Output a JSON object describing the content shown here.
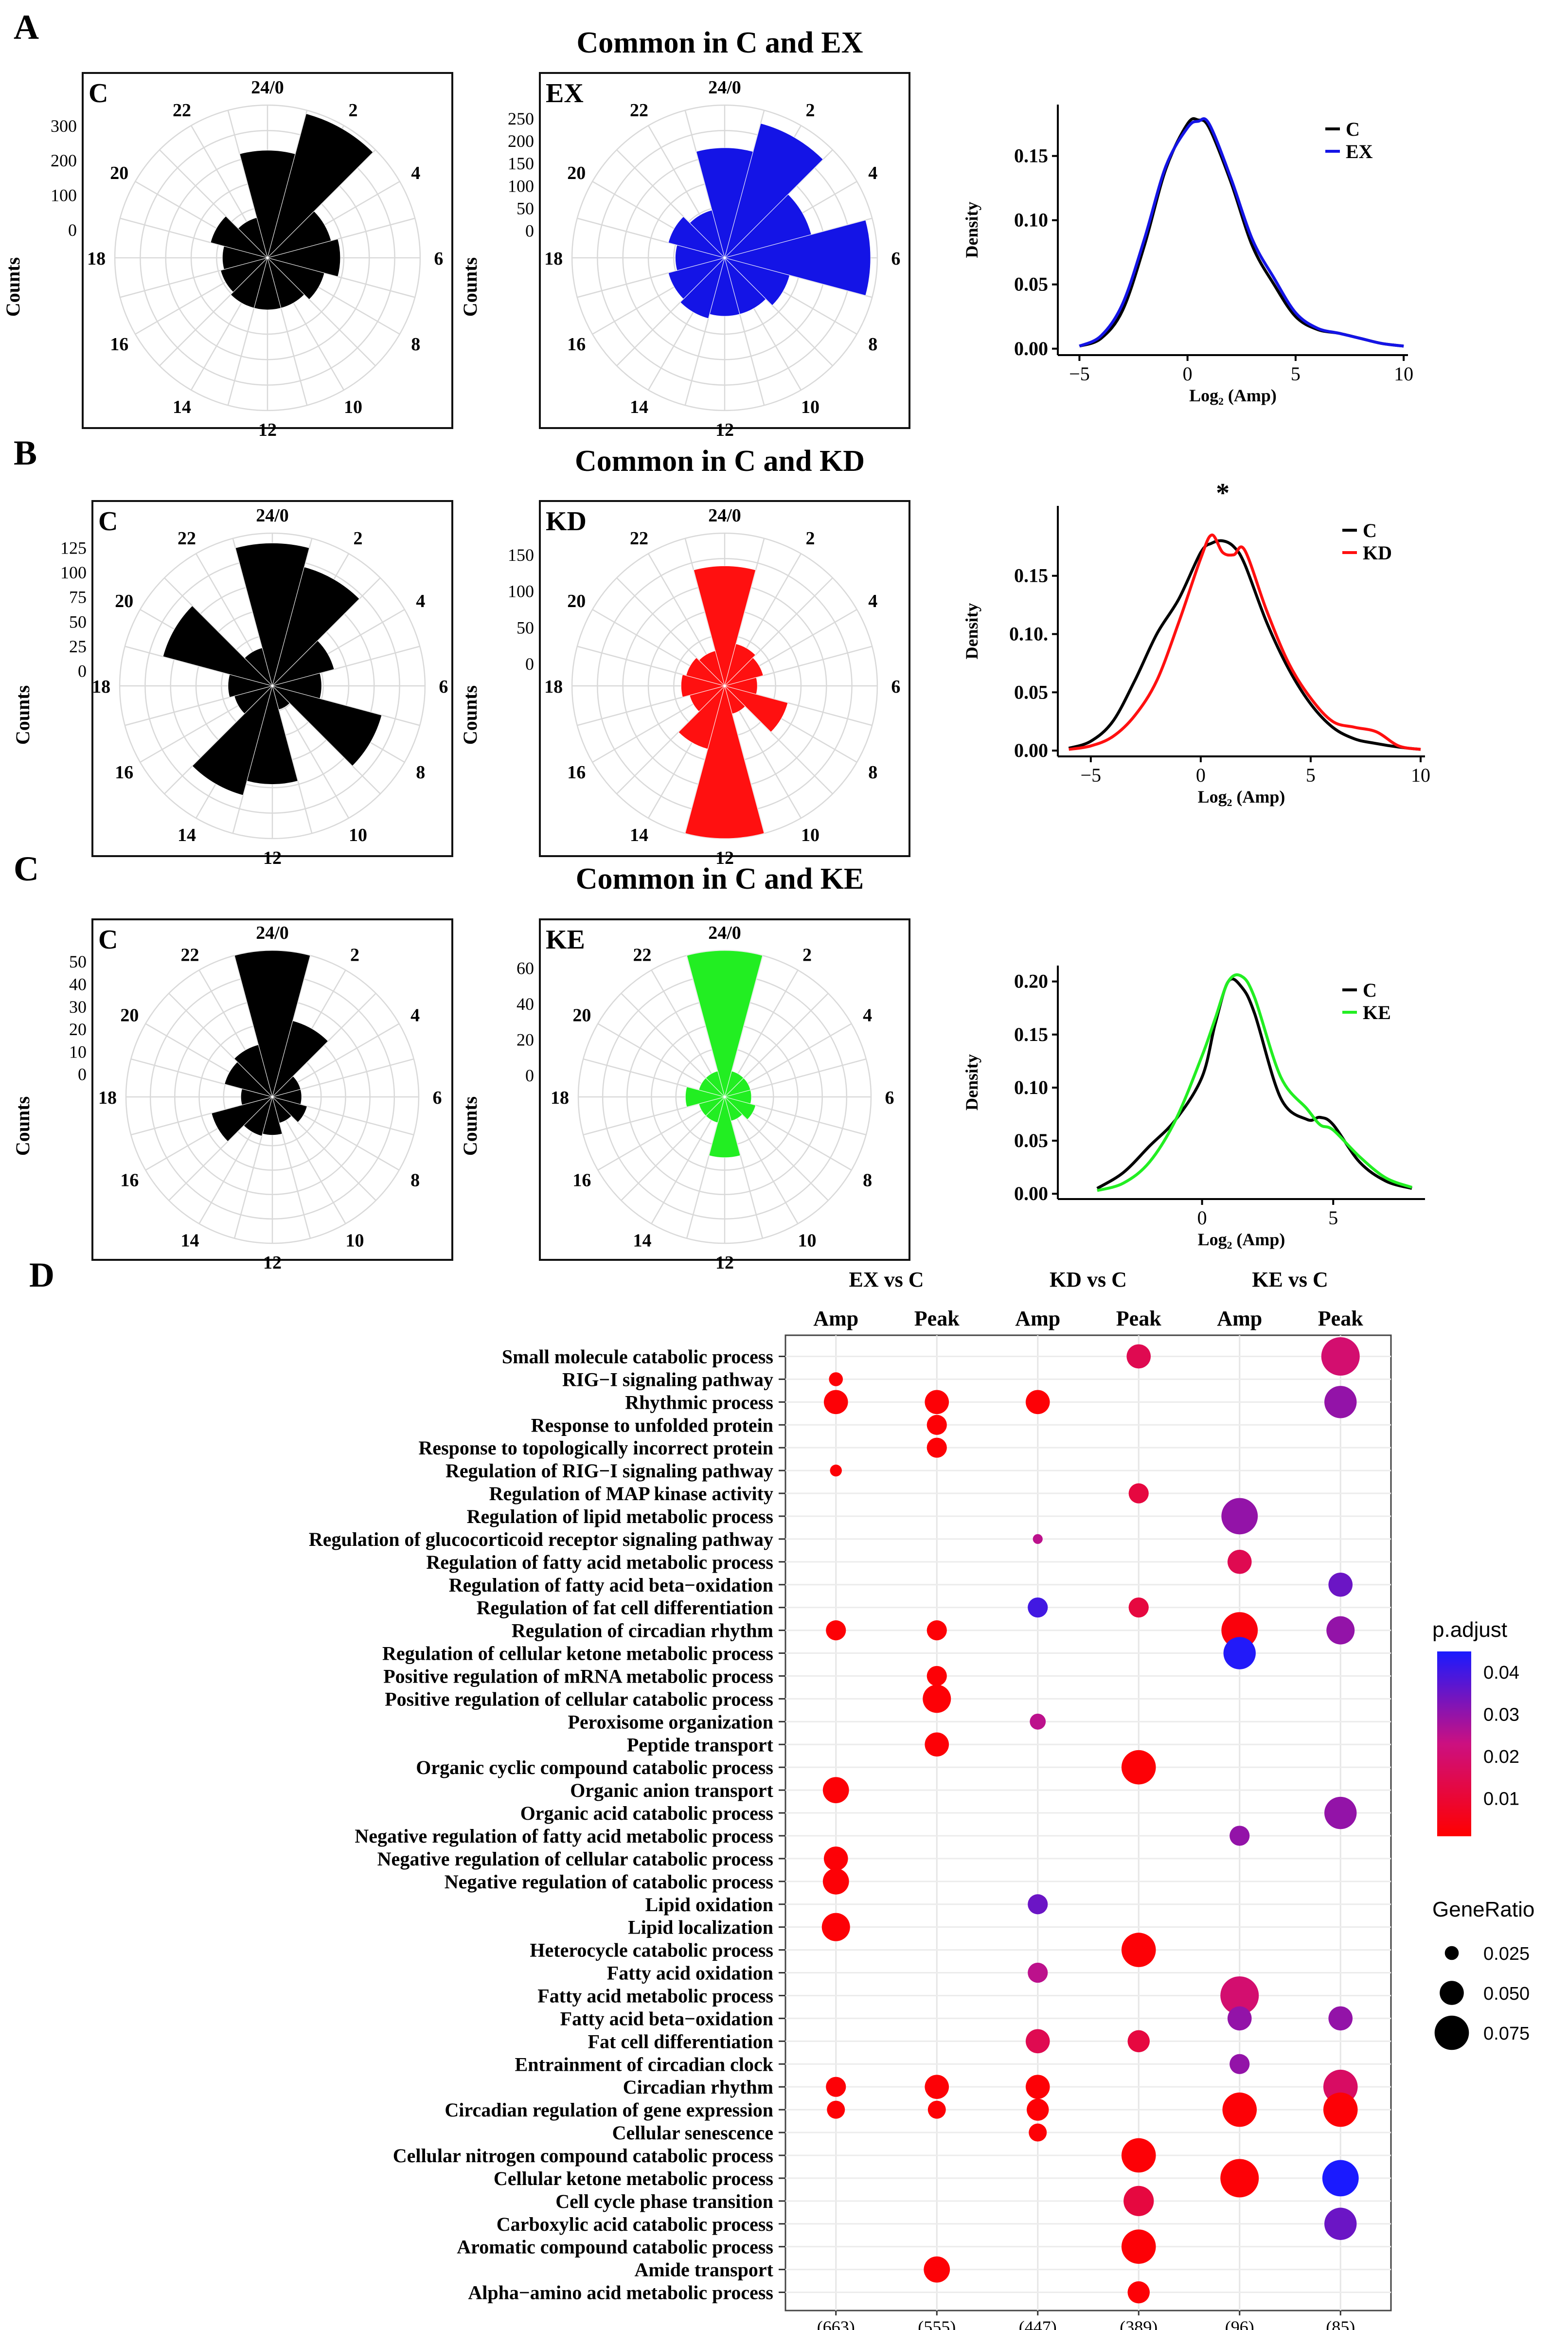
{
  "figure": {
    "panel_letters": [
      "A",
      "B",
      "C",
      "D"
    ],
    "row_titles": [
      "Common in C and EX",
      "Common in C and KD",
      "Common in C and KE"
    ]
  },
  "colors": {
    "c": "#000000",
    "ex": "#1414e6",
    "kd": "#ff1010",
    "ke": "#22ee22",
    "pad_low": "#ff0000",
    "pad_mid": "#cc1080",
    "pad_high": "#1a1aff"
  },
  "chart_data": [
    {
      "id": "rose-A-C",
      "type": "rose",
      "label": "C",
      "ylabel": "Counts",
      "axis_ticks": [
        "300",
        "200",
        "100",
        "0"
      ],
      "rmax": 360,
      "rmin": -80,
      "color_key": "c",
      "hour_labels": [
        "24/0",
        "2",
        "4",
        "6",
        "8",
        "10",
        "12",
        "14",
        "16",
        "18",
        "20",
        "22"
      ],
      "values": [
        230,
        350,
        110,
        130,
        90,
        70,
        70,
        70,
        60,
        50,
        90,
        40
      ]
    },
    {
      "id": "rose-A-EX",
      "type": "rose",
      "label": "EX",
      "ylabel": "Counts",
      "axis_ticks": [
        "250",
        "200",
        "150",
        "100",
        "50",
        "0"
      ],
      "rmax": 280,
      "rmin": -60,
      "color_key": "ex",
      "hour_labels": [
        "24/0",
        "2",
        "4",
        "6",
        "8",
        "10",
        "12",
        "14",
        "16",
        "18",
        "20",
        "22"
      ],
      "values": [
        185,
        250,
        140,
        265,
        90,
        70,
        70,
        80,
        70,
        50,
        70,
        50
      ]
    },
    {
      "id": "rose-B-C",
      "type": "rose",
      "label": "C",
      "ylabel": "Counts",
      "axis_ticks": [
        "125",
        "100",
        "75",
        "50",
        "25",
        "0"
      ],
      "rmax": 140,
      "rmin": -15,
      "color_key": "c",
      "hour_labels": [
        "24/0",
        "2",
        "4",
        "6",
        "8",
        "10",
        "12",
        "14",
        "16",
        "18",
        "20",
        "22"
      ],
      "values": [
        130,
        110,
        50,
        35,
        100,
        10,
        85,
        100,
        25,
        30,
        100,
        25
      ]
    },
    {
      "id": "rose-B-KD",
      "type": "rose",
      "label": "KD",
      "ylabel": "Counts",
      "axis_ticks": [
        "150",
        "100",
        "50",
        "0"
      ],
      "rmax": 180,
      "rmin": -30,
      "color_key": "kd",
      "hour_labels": [
        "24/0",
        "2",
        "4",
        "6",
        "8",
        "10",
        "12",
        "14",
        "16",
        "18",
        "20",
        "22"
      ],
      "values": [
        135,
        30,
        25,
        15,
        60,
        10,
        180,
        60,
        20,
        30,
        25,
        20
      ]
    },
    {
      "id": "rose-C-C",
      "type": "rose",
      "label": "C",
      "ylabel": "Counts",
      "axis_ticks": [
        "50",
        "40",
        "30",
        "20",
        "10",
        "0"
      ],
      "rmax": 55,
      "rmin": -10,
      "color_key": "c",
      "hour_labels": [
        "24/0",
        "2",
        "4",
        "6",
        "8",
        "10",
        "12",
        "14",
        "16",
        "18",
        "20",
        "22"
      ],
      "values": [
        55,
        25,
        3,
        3,
        6,
        2,
        7,
        8,
        18,
        4,
        12,
        14
      ]
    },
    {
      "id": "rose-C-KE",
      "type": "rose",
      "label": "KE",
      "ylabel": "Counts",
      "axis_ticks": [
        "60",
        "40",
        "20",
        "0"
      ],
      "rmax": 70,
      "rmin": -12,
      "color_key": "ke",
      "hour_labels": [
        "24/0",
        "2",
        "4",
        "6",
        "8",
        "10",
        "12",
        "14",
        "16",
        "18",
        "20",
        "22"
      ],
      "values": [
        70,
        3,
        3,
        3,
        6,
        2,
        22,
        3,
        3,
        10,
        3,
        3
      ]
    },
    {
      "id": "density-A",
      "type": "line",
      "xlabel": "Log₂ (Amp)",
      "ylabel": "Density",
      "xlim": [
        -6,
        10.2
      ],
      "ylim": [
        -0.005,
        0.19
      ],
      "xticks": [
        -5,
        0,
        5,
        10
      ],
      "xtick_labels": [
        "−5",
        "0",
        "5",
        "10"
      ],
      "yticks": [
        0,
        0.05,
        0.1,
        0.15
      ],
      "ytick_labels": [
        "0.00",
        "0.05",
        "0.10",
        "0.15"
      ],
      "annotation": "",
      "series": [
        {
          "name": "C",
          "color_key": "c",
          "x": [
            -5,
            -4,
            -3,
            -2,
            -1,
            0,
            0.5,
            1,
            2,
            3,
            4,
            5,
            6,
            7,
            8,
            9,
            10
          ],
          "y": [
            0.002,
            0.008,
            0.03,
            0.08,
            0.14,
            0.175,
            0.178,
            0.172,
            0.13,
            0.08,
            0.05,
            0.025,
            0.015,
            0.012,
            0.008,
            0.004,
            0.002
          ]
        },
        {
          "name": "EX",
          "color_key": "ex",
          "x": [
            -5,
            -4,
            -3,
            -2,
            -1,
            0,
            0.5,
            1,
            2,
            3,
            4,
            5,
            6,
            7,
            8,
            9,
            10
          ],
          "y": [
            0.002,
            0.01,
            0.035,
            0.085,
            0.142,
            0.172,
            0.177,
            0.175,
            0.133,
            0.085,
            0.055,
            0.028,
            0.016,
            0.012,
            0.008,
            0.004,
            0.002
          ]
        }
      ]
    },
    {
      "id": "density-B",
      "type": "line",
      "xlabel": "Log₂ (Amp)",
      "ylabel": "Density",
      "xlim": [
        -6.5,
        10.2
      ],
      "ylim": [
        -0.005,
        0.21
      ],
      "xticks": [
        -5,
        0,
        5,
        10
      ],
      "xtick_labels": [
        "−5",
        "0",
        "5",
        "10"
      ],
      "yticks": [
        0,
        0.05,
        0.1,
        0.15
      ],
      "ytick_labels": [
        "0.00",
        "0.05",
        "0.10.",
        "0.15"
      ],
      "annotation": "*",
      "series": [
        {
          "name": "C",
          "color_key": "c",
          "x": [
            -6,
            -5,
            -4,
            -3,
            -2,
            -1,
            0,
            0.5,
            1,
            1.5,
            2,
            3,
            4,
            5,
            6,
            7,
            8,
            9,
            10
          ],
          "y": [
            0.002,
            0.008,
            0.025,
            0.06,
            0.1,
            0.13,
            0.17,
            0.178,
            0.18,
            0.175,
            0.16,
            0.11,
            0.07,
            0.04,
            0.02,
            0.01,
            0.006,
            0.003,
            0.001
          ]
        },
        {
          "name": "KD",
          "color_key": "kd",
          "x": [
            -6,
            -5,
            -4,
            -3,
            -2,
            -1,
            0,
            0.5,
            1,
            1.5,
            2,
            3,
            4,
            5,
            6,
            7,
            8,
            9,
            10
          ],
          "y": [
            0.001,
            0.004,
            0.012,
            0.03,
            0.06,
            0.11,
            0.165,
            0.185,
            0.17,
            0.168,
            0.172,
            0.12,
            0.075,
            0.045,
            0.025,
            0.02,
            0.016,
            0.004,
            0.001
          ]
        }
      ]
    },
    {
      "id": "density-C",
      "type": "line",
      "xlabel": "Log₂ (Amp)",
      "ylabel": "Density",
      "xlim": [
        -5.5,
        8.5
      ],
      "ylim": [
        -0.005,
        0.215
      ],
      "xticks": [
        0,
        5
      ],
      "xtick_labels": [
        "0",
        "5"
      ],
      "yticks": [
        0,
        0.05,
        0.1,
        0.15,
        0.2
      ],
      "ytick_labels": [
        "0.00",
        "0.05",
        "0.10",
        "0.15",
        "0.20"
      ],
      "annotation": "",
      "series": [
        {
          "name": "C",
          "color_key": "c",
          "x": [
            -4,
            -3,
            -2,
            -1,
            0,
            0.5,
            1,
            1.5,
            2,
            3,
            4,
            4.5,
            5,
            6,
            7,
            8
          ],
          "y": [
            0.005,
            0.02,
            0.045,
            0.07,
            0.11,
            0.16,
            0.2,
            0.195,
            0.17,
            0.09,
            0.07,
            0.072,
            0.065,
            0.03,
            0.012,
            0.005
          ]
        },
        {
          "name": "KE",
          "color_key": "ke",
          "x": [
            -4,
            -3,
            -2,
            -1,
            0,
            0.5,
            1,
            1.5,
            2,
            3,
            4,
            4.5,
            5,
            6,
            7,
            8
          ],
          "y": [
            0.003,
            0.01,
            0.03,
            0.07,
            0.13,
            0.165,
            0.2,
            0.205,
            0.185,
            0.11,
            0.08,
            0.065,
            0.06,
            0.035,
            0.015,
            0.006
          ]
        }
      ]
    },
    {
      "id": "enrichment-D",
      "type": "scatter",
      "group_headers": [
        "EX vs C",
        "KD vs C",
        "KE vs C"
      ],
      "columns": [
        "Amp",
        "Peak",
        "Amp",
        "Peak",
        "Amp",
        "Peak"
      ],
      "column_counts": [
        "(663)",
        "(555)",
        "(447)",
        "(389)",
        "(96)",
        "(85)"
      ],
      "terms": [
        "Small molecule catabolic process",
        "RIG−I signaling pathway",
        "Rhythmic process",
        "Response to unfolded protein",
        "Response to topologically incorrect protein",
        "Regulation of RIG−I signaling pathway",
        "Regulation of MAP kinase activity",
        "Regulation of lipid metabolic process",
        "Regulation of glucocorticoid receptor signaling pathway",
        "Regulation of fatty acid metabolic process",
        "Regulation of fatty acid beta−oxidation",
        "Regulation of fat cell differentiation",
        "Regulation of circadian rhythm",
        "Regulation of cellular ketone metabolic process",
        "Positive regulation of mRNA metabolic process",
        "Positive regulation of cellular catabolic process",
        "Peroxisome organization",
        "Peptide transport",
        "Organic cyclic compound catabolic process",
        "Organic anion transport",
        "Organic acid catabolic process",
        "Negative regulation of fatty acid metabolic process",
        "Negative regulation of cellular catabolic process",
        "Negative regulation of catabolic process",
        "Lipid oxidation",
        "Lipid localization",
        "Heterocycle catabolic process",
        "Fatty acid oxidation",
        "Fatty acid metabolic process",
        "Fatty acid beta−oxidation",
        "Fat cell differentiation",
        "Entrainment of circadian clock",
        "Circadian rhythm",
        "Circadian regulation of gene expression",
        "Cellular senescence",
        "Cellular nitrogen compound catabolic process",
        "Cellular ketone metabolic process",
        "Cell cycle phase transition",
        "Carboxylic acid catabolic process",
        "Aromatic compound catabolic process",
        "Amide transport",
        "Alpha−amino acid metabolic process"
      ],
      "points": [
        {
          "col": 3,
          "term": 0,
          "ratio": 0.05,
          "padj": 0.015
        },
        {
          "col": 5,
          "term": 0,
          "ratio": 0.085,
          "padj": 0.02
        },
        {
          "col": 0,
          "term": 1,
          "ratio": 0.025,
          "padj": 0.002
        },
        {
          "col": 0,
          "term": 2,
          "ratio": 0.05,
          "padj": 0.002
        },
        {
          "col": 1,
          "term": 2,
          "ratio": 0.05,
          "padj": 0.002
        },
        {
          "col": 2,
          "term": 2,
          "ratio": 0.05,
          "padj": 0.002
        },
        {
          "col": 5,
          "term": 2,
          "ratio": 0.07,
          "padj": 0.03
        },
        {
          "col": 1,
          "term": 3,
          "ratio": 0.04,
          "padj": 0.002
        },
        {
          "col": 1,
          "term": 4,
          "ratio": 0.04,
          "padj": 0.002
        },
        {
          "col": 0,
          "term": 5,
          "ratio": 0.02,
          "padj": 0.002
        },
        {
          "col": 3,
          "term": 6,
          "ratio": 0.04,
          "padj": 0.012
        },
        {
          "col": 4,
          "term": 7,
          "ratio": 0.08,
          "padj": 0.03
        },
        {
          "col": 2,
          "term": 8,
          "ratio": 0.015,
          "padj": 0.025
        },
        {
          "col": 4,
          "term": 9,
          "ratio": 0.05,
          "padj": 0.015
        },
        {
          "col": 5,
          "term": 10,
          "ratio": 0.05,
          "padj": 0.035
        },
        {
          "col": 2,
          "term": 11,
          "ratio": 0.04,
          "padj": 0.04
        },
        {
          "col": 3,
          "term": 11,
          "ratio": 0.04,
          "padj": 0.012
        },
        {
          "col": 0,
          "term": 12,
          "ratio": 0.04,
          "padj": 0.002
        },
        {
          "col": 1,
          "term": 12,
          "ratio": 0.04,
          "padj": 0.002
        },
        {
          "col": 4,
          "term": 12,
          "ratio": 0.08,
          "padj": 0.003
        },
        {
          "col": 5,
          "term": 12,
          "ratio": 0.06,
          "padj": 0.03
        },
        {
          "col": 4,
          "term": 13,
          "ratio": 0.07,
          "padj": 0.044
        },
        {
          "col": 1,
          "term": 14,
          "ratio": 0.04,
          "padj": 0.002
        },
        {
          "col": 1,
          "term": 15,
          "ratio": 0.06,
          "padj": 0.002
        },
        {
          "col": 2,
          "term": 16,
          "ratio": 0.03,
          "padj": 0.025
        },
        {
          "col": 1,
          "term": 17,
          "ratio": 0.05,
          "padj": 0.002
        },
        {
          "col": 3,
          "term": 18,
          "ratio": 0.075,
          "padj": 0.002
        },
        {
          "col": 0,
          "term": 19,
          "ratio": 0.055,
          "padj": 0.002
        },
        {
          "col": 5,
          "term": 20,
          "ratio": 0.07,
          "padj": 0.03
        },
        {
          "col": 4,
          "term": 21,
          "ratio": 0.04,
          "padj": 0.03
        },
        {
          "col": 0,
          "term": 22,
          "ratio": 0.05,
          "padj": 0.002
        },
        {
          "col": 0,
          "term": 23,
          "ratio": 0.055,
          "padj": 0.002
        },
        {
          "col": 2,
          "term": 24,
          "ratio": 0.04,
          "padj": 0.035
        },
        {
          "col": 0,
          "term": 25,
          "ratio": 0.06,
          "padj": 0.002
        },
        {
          "col": 3,
          "term": 26,
          "ratio": 0.075,
          "padj": 0.002
        },
        {
          "col": 2,
          "term": 27,
          "ratio": 0.04,
          "padj": 0.025
        },
        {
          "col": 4,
          "term": 28,
          "ratio": 0.085,
          "padj": 0.02
        },
        {
          "col": 4,
          "term": 29,
          "ratio": 0.05,
          "padj": 0.03
        },
        {
          "col": 5,
          "term": 29,
          "ratio": 0.05,
          "padj": 0.03
        },
        {
          "col": 2,
          "term": 30,
          "ratio": 0.05,
          "padj": 0.015
        },
        {
          "col": 3,
          "term": 30,
          "ratio": 0.045,
          "padj": 0.012
        },
        {
          "col": 4,
          "term": 31,
          "ratio": 0.04,
          "padj": 0.03
        },
        {
          "col": 0,
          "term": 32,
          "ratio": 0.04,
          "padj": 0.002
        },
        {
          "col": 1,
          "term": 32,
          "ratio": 0.05,
          "padj": 0.002
        },
        {
          "col": 2,
          "term": 32,
          "ratio": 0.05,
          "padj": 0.002
        },
        {
          "col": 5,
          "term": 32,
          "ratio": 0.075,
          "padj": 0.018
        },
        {
          "col": 0,
          "term": 33,
          "ratio": 0.035,
          "padj": 0.002
        },
        {
          "col": 1,
          "term": 33,
          "ratio": 0.035,
          "padj": 0.002
        },
        {
          "col": 2,
          "term": 33,
          "ratio": 0.045,
          "padj": 0.002
        },
        {
          "col": 4,
          "term": 33,
          "ratio": 0.075,
          "padj": 0.002
        },
        {
          "col": 5,
          "term": 33,
          "ratio": 0.075,
          "padj": 0.002
        },
        {
          "col": 2,
          "term": 34,
          "ratio": 0.035,
          "padj": 0.002
        },
        {
          "col": 3,
          "term": 35,
          "ratio": 0.075,
          "padj": 0.002
        },
        {
          "col": 4,
          "term": 36,
          "ratio": 0.085,
          "padj": 0.002
        },
        {
          "col": 5,
          "term": 36,
          "ratio": 0.08,
          "padj": 0.045
        },
        {
          "col": 3,
          "term": 37,
          "ratio": 0.065,
          "padj": 0.012
        },
        {
          "col": 5,
          "term": 38,
          "ratio": 0.07,
          "padj": 0.035
        },
        {
          "col": 3,
          "term": 39,
          "ratio": 0.075,
          "padj": 0.002
        },
        {
          "col": 1,
          "term": 40,
          "ratio": 0.055,
          "padj": 0.002
        },
        {
          "col": 3,
          "term": 41,
          "ratio": 0.045,
          "padj": 0.002
        }
      ],
      "legend_color_title": "p.adjust",
      "legend_color_labels": [
        "0.04",
        "0.03",
        "0.02",
        "0.01"
      ],
      "legend_color_values": [
        0.04,
        0.03,
        0.02,
        0.01
      ],
      "padj_range": [
        0.001,
        0.045
      ],
      "legend_size_title": "GeneRatio",
      "legend_size_labels": [
        "0.025",
        "0.050",
        "0.075"
      ],
      "legend_size_values": [
        0.025,
        0.05,
        0.075
      ]
    }
  ]
}
